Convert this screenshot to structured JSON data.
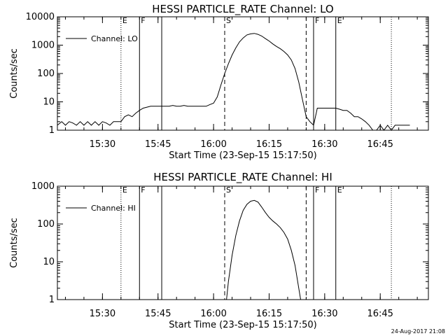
{
  "footer_timestamp": "24-Aug-2017 21:08",
  "chart_data": [
    {
      "type": "line",
      "title": "HESSI PARTICLE_RATE Channel: LO",
      "xlabel": "Start Time (23-Sep-15 15:17:50)",
      "ylabel": "Counts/sec",
      "y_scale": "log",
      "ylim": [
        1,
        10000
      ],
      "y_ticks": [
        1,
        10,
        100,
        1000,
        10000
      ],
      "y_tick_labels": [
        "1",
        "10",
        "100",
        "1000",
        "10000"
      ],
      "xlim": [
        "15:17:50",
        "16:58:00"
      ],
      "x_ticks": [
        "15:30",
        "15:45",
        "16:00",
        "16:15",
        "16:30",
        "16:45"
      ],
      "legend": "Channel: LO",
      "legend_position": "top-left",
      "series": [
        {
          "name": "Channel: LO",
          "color": "#000000",
          "x": [
            "15:17:50",
            "15:19:00",
            "15:20:00",
            "15:21:00",
            "15:22:00",
            "15:23:00",
            "15:24:00",
            "15:25:00",
            "15:26:00",
            "15:27:00",
            "15:28:00",
            "15:29:00",
            "15:30:00",
            "15:31:00",
            "15:32:00",
            "15:33:00",
            "15:34:00",
            "15:35:00",
            "15:36:00",
            "15:37:00",
            "15:38:00",
            "15:39:00",
            "15:40:00",
            "15:41:00",
            "15:42:00",
            "15:43:00",
            "15:44:00",
            "15:45:00",
            "15:46:00",
            "15:47:00",
            "15:48:00",
            "15:49:00",
            "15:50:00",
            "15:51:00",
            "15:52:00",
            "15:53:00",
            "15:54:00",
            "15:55:00",
            "15:56:00",
            "15:57:00",
            "15:58:00",
            "15:59:00",
            "16:00:00",
            "16:01:00",
            "16:02:00",
            "16:03:00",
            "16:04:00",
            "16:05:00",
            "16:06:00",
            "16:07:00",
            "16:08:00",
            "16:09:00",
            "16:10:00",
            "16:11:00",
            "16:12:00",
            "16:13:00",
            "16:14:00",
            "16:15:00",
            "16:16:00",
            "16:17:00",
            "16:18:00",
            "16:19:00",
            "16:20:00",
            "16:21:00",
            "16:22:00",
            "16:23:00",
            "16:24:00",
            "16:25:00",
            "16:26:00",
            "16:27:00",
            "16:28:00",
            "16:29:00",
            "16:30:00",
            "16:31:00",
            "16:32:00",
            "16:33:00",
            "16:34:00",
            "16:35:00",
            "16:36:00",
            "16:37:00",
            "16:38:00",
            "16:39:00",
            "16:40:00",
            "16:41:00",
            "16:42:00",
            "16:43:00",
            "16:44:00",
            "16:45:00",
            "16:46:00",
            "16:47:00",
            "16:48:00",
            "16:49:00",
            "16:50:00",
            "16:51:00",
            "16:52:00",
            "16:53:00"
          ],
          "y": [
            1.5,
            2,
            1.5,
            2,
            1.8,
            1.5,
            2,
            1.5,
            2,
            1.5,
            2,
            1.5,
            2,
            1.8,
            1.5,
            2,
            2,
            2,
            3,
            3.5,
            3,
            4,
            5,
            6,
            6.5,
            7,
            7,
            7,
            7,
            7,
            7,
            7.5,
            7,
            7,
            7.5,
            7,
            7,
            7,
            7,
            7,
            7,
            8,
            9,
            15,
            40,
            100,
            220,
            450,
            800,
            1300,
            1800,
            2300,
            2500,
            2600,
            2400,
            2100,
            1700,
            1400,
            1100,
            900,
            750,
            600,
            450,
            300,
            150,
            50,
            12,
            3,
            2,
            1.5,
            6,
            6,
            6,
            6,
            6,
            6,
            5.5,
            5,
            5,
            4,
            3,
            3,
            2.5,
            2,
            1.5,
            1,
            1,
            1.5,
            1,
            1.5,
            1,
            1.5,
            1.5,
            1.5,
            1.5,
            1.5
          ]
        }
      ],
      "vertical_markers": [
        {
          "time": "15:35:00",
          "style": "dotted",
          "label": "E"
        },
        {
          "time": "15:40:00",
          "style": "solid",
          "label": "F"
        },
        {
          "time": "15:46:00",
          "style": "solid",
          "label": ""
        },
        {
          "time": "16:03:00",
          "style": "dashed",
          "label": "S"
        },
        {
          "time": "16:25:00",
          "style": "dashed",
          "label": ""
        },
        {
          "time": "16:27:00",
          "style": "solid",
          "label": "F"
        },
        {
          "time": "16:33:00",
          "style": "solid",
          "label": "E"
        },
        {
          "time": "16:48:00",
          "style": "dotted",
          "label": ""
        }
      ]
    },
    {
      "type": "line",
      "title": "HESSI PARTICLE_RATE Channel: HI",
      "xlabel": "Start Time (23-Sep-15 15:17:50)",
      "ylabel": "Counts/sec",
      "y_scale": "log",
      "ylim": [
        1,
        1000
      ],
      "y_ticks": [
        1,
        10,
        100,
        1000
      ],
      "y_tick_labels": [
        "1",
        "10",
        "100",
        "1000"
      ],
      "xlim": [
        "15:17:50",
        "16:58:00"
      ],
      "x_ticks": [
        "15:30",
        "15:45",
        "16:00",
        "16:15",
        "16:30",
        "16:45"
      ],
      "legend": "Channel: HI",
      "legend_position": "top-left",
      "series": [
        {
          "name": "Channel: HI",
          "color": "#000000",
          "x": [
            "16:03:30",
            "16:04:00",
            "16:05:00",
            "16:06:00",
            "16:07:00",
            "16:08:00",
            "16:09:00",
            "16:10:00",
            "16:11:00",
            "16:12:00",
            "16:13:00",
            "16:14:00",
            "16:15:00",
            "16:16:00",
            "16:17:00",
            "16:18:00",
            "16:19:00",
            "16:20:00",
            "16:21:00",
            "16:22:00",
            "16:23:00",
            "16:23:30"
          ],
          "y": [
            1,
            3,
            15,
            50,
            120,
            230,
            330,
            400,
            420,
            380,
            280,
            200,
            150,
            120,
            100,
            80,
            60,
            40,
            20,
            8,
            2,
            1
          ]
        }
      ],
      "vertical_markers": [
        {
          "time": "15:35:00",
          "style": "dotted",
          "label": "E"
        },
        {
          "time": "15:40:00",
          "style": "solid",
          "label": "F"
        },
        {
          "time": "15:46:00",
          "style": "solid",
          "label": ""
        },
        {
          "time": "16:03:00",
          "style": "dashed",
          "label": "S"
        },
        {
          "time": "16:25:00",
          "style": "dashed",
          "label": ""
        },
        {
          "time": "16:27:00",
          "style": "solid",
          "label": "F"
        },
        {
          "time": "16:33:00",
          "style": "solid",
          "label": "E"
        },
        {
          "time": "16:48:00",
          "style": "dotted",
          "label": ""
        }
      ]
    }
  ]
}
